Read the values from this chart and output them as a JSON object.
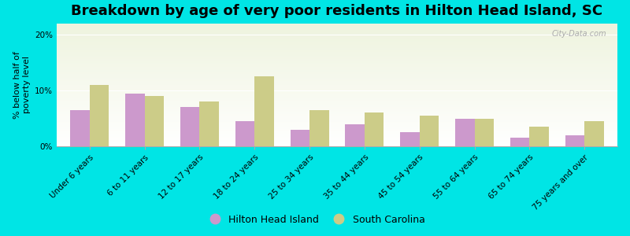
{
  "title": "Breakdown by age of very poor residents in Hilton Head Island, SC",
  "ylabel": "% below half of\npoverty level",
  "categories": [
    "Under 6 years",
    "6 to 11 years",
    "12 to 17 years",
    "18 to 24 years",
    "25 to 34 years",
    "35 to 44 years",
    "45 to 54 years",
    "55 to 64 years",
    "65 to 74 years",
    "75 years and over"
  ],
  "hilton_head": [
    6.5,
    9.5,
    7.0,
    4.5,
    3.0,
    4.0,
    2.5,
    5.0,
    1.5,
    2.0
  ],
  "south_carolina": [
    11.0,
    9.0,
    8.0,
    12.5,
    6.5,
    6.0,
    5.5,
    5.0,
    3.5,
    4.5
  ],
  "hhi_color": "#cc99cc",
  "sc_color": "#cccc88",
  "background_outer": "#00e5e5",
  "background_inner_top": "#eef3de",
  "background_inner_bottom": "#ffffff",
  "ylim": [
    0,
    22
  ],
  "yticks": [
    0,
    10,
    20
  ],
  "ytick_labels": [
    "0%",
    "10%",
    "20%"
  ],
  "bar_width": 0.35,
  "legend_hhi": "Hilton Head Island",
  "legend_sc": "South Carolina",
  "title_fontsize": 13,
  "axis_label_fontsize": 8,
  "tick_fontsize": 7.5,
  "legend_fontsize": 9
}
